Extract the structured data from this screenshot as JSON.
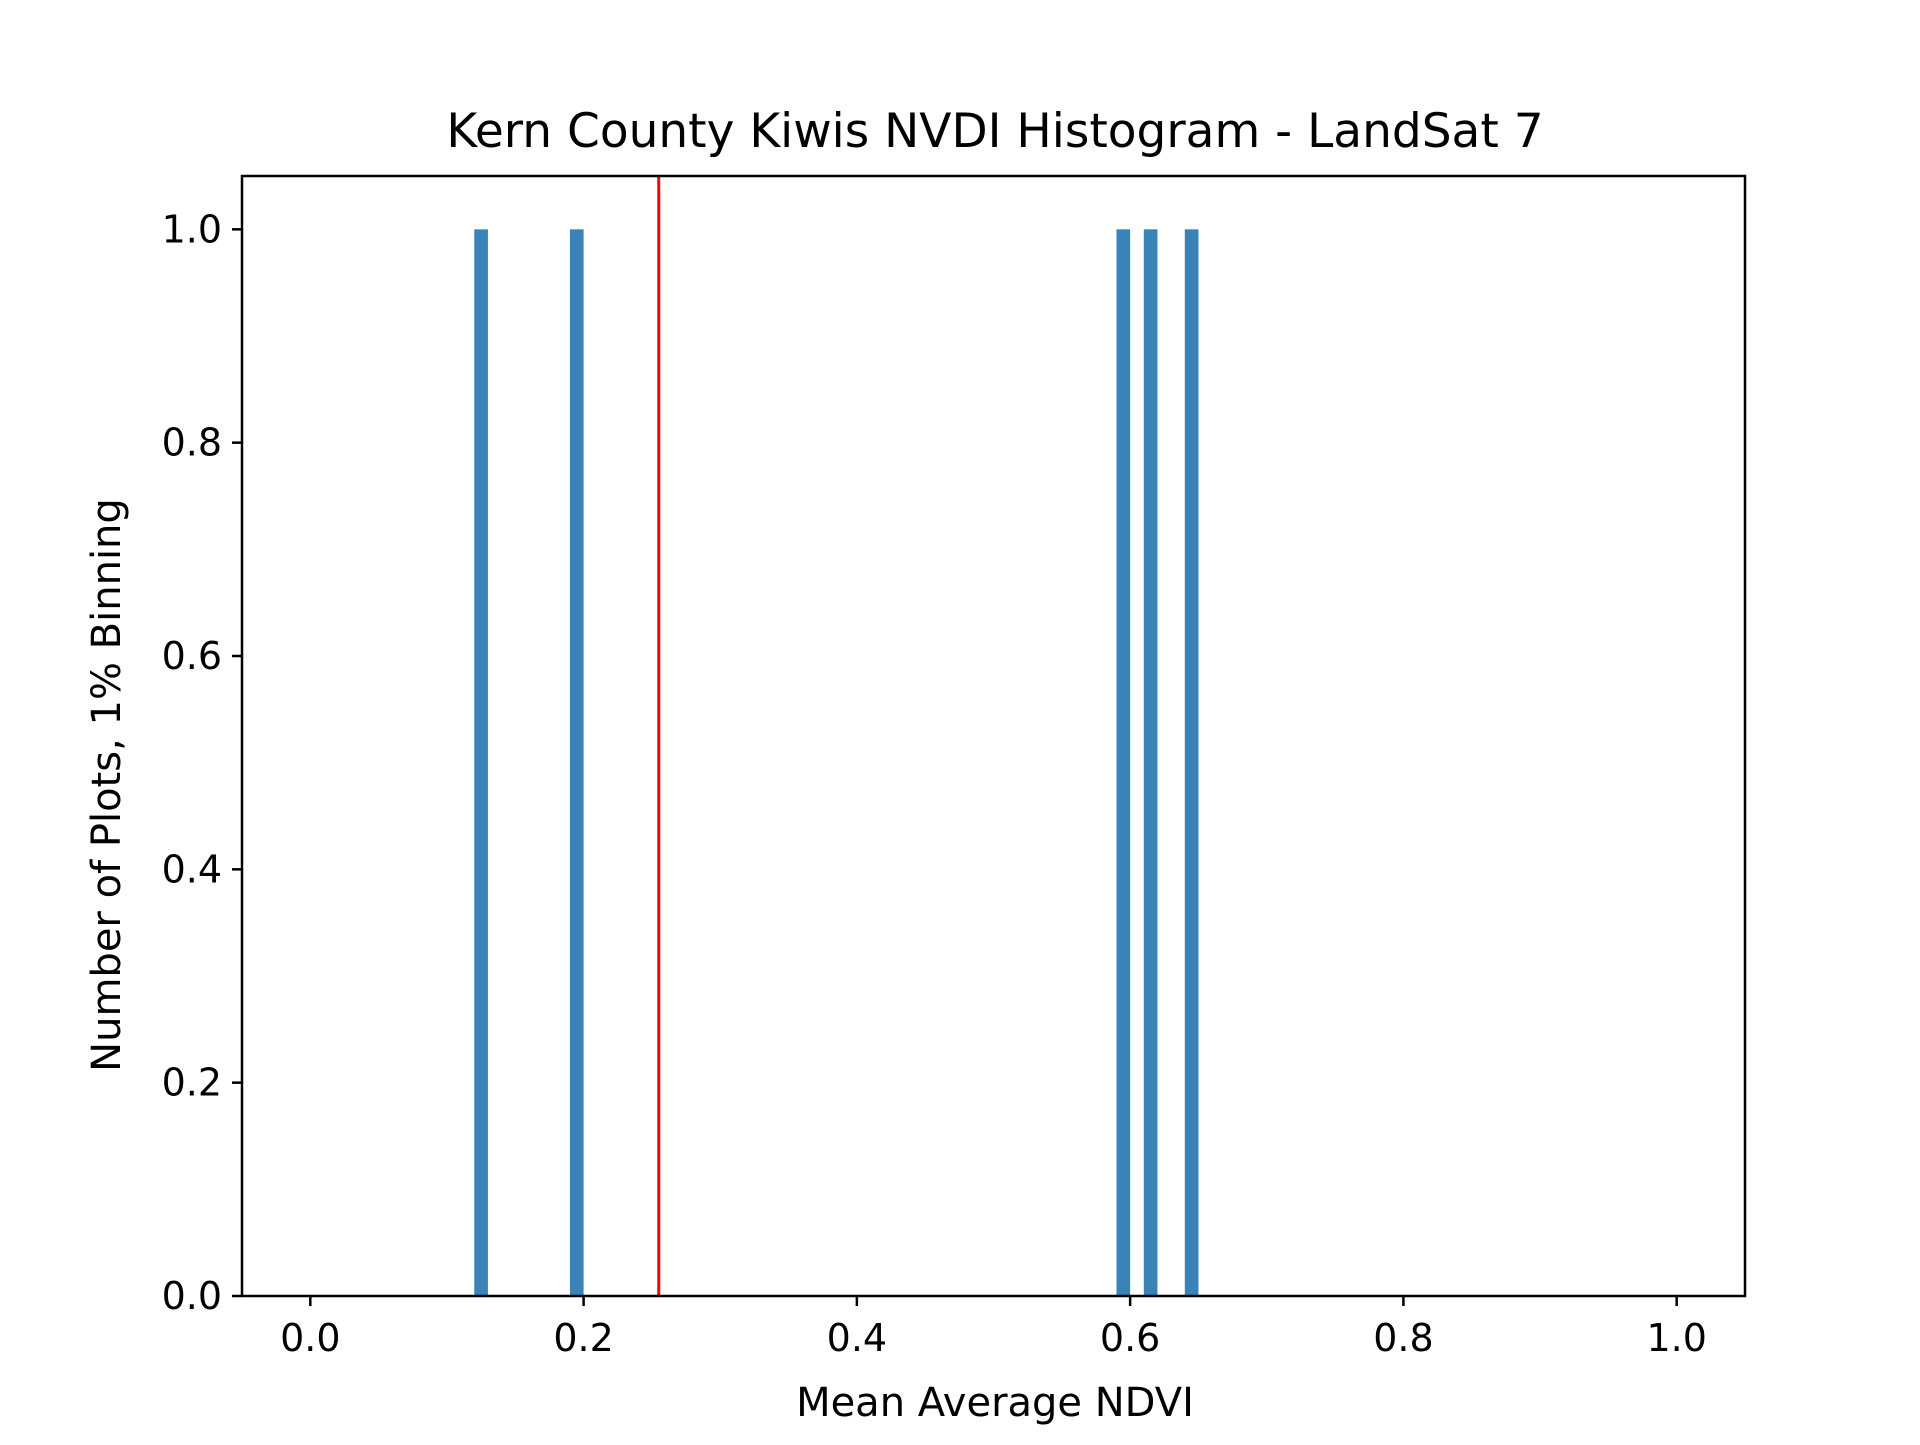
{
  "chart_data": {
    "type": "bar",
    "title": "Kern County Kiwis NVDI Histogram - LandSat 7",
    "xlabel": "Mean Average NDVI",
    "ylabel": "Number of Plots, 1% Binning",
    "xlim": [
      -0.05,
      1.05
    ],
    "ylim": [
      0.0,
      1.05
    ],
    "x_ticks": [
      "0.0",
      "0.2",
      "0.4",
      "0.6",
      "0.8",
      "1.0"
    ],
    "y_ticks": [
      "0.0",
      "0.2",
      "0.4",
      "0.6",
      "0.8",
      "1.0"
    ],
    "bin_width": 0.01,
    "bars": [
      {
        "x_start": 0.12,
        "x_end": 0.13,
        "value": 1.0
      },
      {
        "x_start": 0.19,
        "x_end": 0.2,
        "value": 1.0
      },
      {
        "x_start": 0.59,
        "x_end": 0.6,
        "value": 1.0
      },
      {
        "x_start": 0.61,
        "x_end": 0.62,
        "value": 1.0
      },
      {
        "x_start": 0.64,
        "x_end": 0.65,
        "value": 1.0
      }
    ],
    "reference_line": {
      "x": 0.255,
      "color": "#ff0000"
    },
    "bar_color": "#3a83b8",
    "grid": false,
    "legend": "none"
  }
}
